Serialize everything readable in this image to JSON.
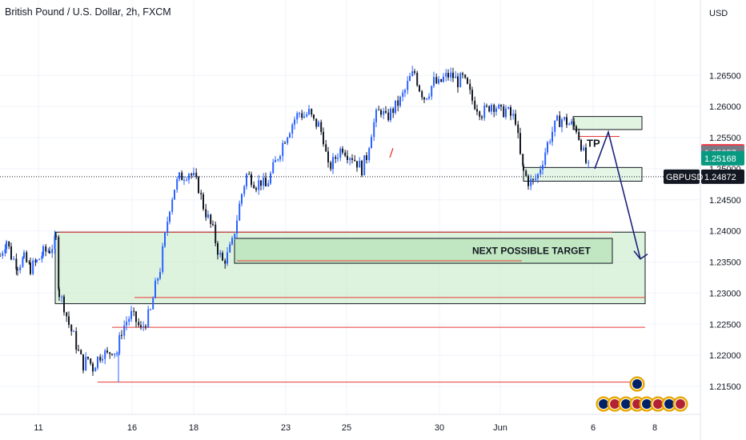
{
  "header": {
    "title": "British Pound / U.S. Dollar, 2h, FXCM",
    "currency": "USD"
  },
  "colors": {
    "up": "#2962ff",
    "down": "#131722",
    "zone_fill": "#c8ebc8",
    "zone_border": "#131722",
    "support_line": "#e53935",
    "arrow": "#1a237e",
    "grid": "#f0f3fa"
  },
  "chart_data": {
    "type": "candlestick",
    "symbol": "GBPUSD",
    "current_price": "1.24872",
    "ylim": [
      1.2105,
      1.2725
    ],
    "y_ticks": [
      1.215,
      1.22,
      1.225,
      1.23,
      1.235,
      1.24,
      1.245,
      1.25,
      1.255,
      1.26,
      1.265
    ],
    "y_tick_labels": [
      "1.21500",
      "1.22000",
      "1.22500",
      "1.23000",
      "1.23500",
      "1.24000",
      "1.24500",
      "1.25000",
      "1.25500",
      "1.26000",
      "1.26500"
    ],
    "x_labels": [
      "11",
      "16",
      "18",
      "23",
      "25",
      "30",
      "Jun",
      "6",
      "8"
    ],
    "price_badges": [
      {
        "label": "1.25281",
        "value": 1.25281,
        "color": "#f23645"
      },
      {
        "label": "1.25257",
        "value": 1.25257,
        "color": "#787b86"
      },
      {
        "label": "1.25168",
        "value": 1.25168,
        "color": "#089981"
      },
      {
        "label": "1.24872",
        "value": 1.24872,
        "color": "#131722"
      }
    ],
    "price_path": [
      [
        0,
        1.236
      ],
      [
        8,
        1.2385
      ],
      [
        14,
        1.236
      ],
      [
        22,
        1.2345
      ],
      [
        30,
        1.2355
      ],
      [
        38,
        1.234
      ],
      [
        46,
        1.235
      ],
      [
        54,
        1.2365
      ],
      [
        62,
        1.237
      ],
      [
        70,
        1.2385
      ],
      [
        74,
        1.23
      ],
      [
        80,
        1.228
      ],
      [
        86,
        1.225
      ],
      [
        92,
        1.223
      ],
      [
        98,
        1.2205
      ],
      [
        104,
        1.2185
      ],
      [
        110,
        1.2195
      ],
      [
        116,
        1.218
      ],
      [
        122,
        1.2195
      ],
      [
        128,
        1.2205
      ],
      [
        134,
        1.22
      ],
      [
        140,
        1.221
      ],
      [
        146,
        1.2205
      ],
      [
        152,
        1.224
      ],
      [
        158,
        1.2255
      ],
      [
        164,
        1.2265
      ],
      [
        170,
        1.2255
      ],
      [
        176,
        1.224
      ],
      [
        182,
        1.2255
      ],
      [
        188,
        1.227
      ],
      [
        194,
        1.231
      ],
      [
        200,
        1.234
      ],
      [
        206,
        1.239
      ],
      [
        212,
        1.244
      ],
      [
        218,
        1.247
      ],
      [
        224,
        1.2485
      ],
      [
        230,
        1.249
      ],
      [
        236,
        1.2495
      ],
      [
        242,
        1.2485
      ],
      [
        248,
        1.247
      ],
      [
        254,
        1.244
      ],
      [
        260,
        1.242
      ],
      [
        266,
        1.24
      ],
      [
        272,
        1.237
      ],
      [
        278,
        1.235
      ],
      [
        284,
        1.236
      ],
      [
        290,
        1.238
      ],
      [
        296,
        1.242
      ],
      [
        302,
        1.246
      ],
      [
        308,
        1.249
      ],
      [
        314,
        1.2485
      ],
      [
        320,
        1.2475
      ],
      [
        326,
        1.248
      ],
      [
        332,
        1.247
      ],
      [
        338,
        1.249
      ],
      [
        344,
        1.251
      ],
      [
        350,
        1.253
      ],
      [
        356,
        1.255
      ],
      [
        362,
        1.2565
      ],
      [
        368,
        1.258
      ],
      [
        374,
        1.259
      ],
      [
        380,
        1.2585
      ],
      [
        386,
        1.259
      ],
      [
        392,
        1.2575
      ],
      [
        398,
        1.257
      ],
      [
        404,
        1.255
      ],
      [
        410,
        1.25
      ],
      [
        416,
        1.251
      ],
      [
        422,
        1.2525
      ],
      [
        428,
        1.2535
      ],
      [
        434,
        1.2525
      ],
      [
        440,
        1.252
      ],
      [
        446,
        1.251
      ],
      [
        452,
        1.25
      ],
      [
        458,
        1.252
      ],
      [
        464,
        1.256
      ],
      [
        470,
        1.2585
      ],
      [
        476,
        1.2595
      ],
      [
        482,
        1.258
      ],
      [
        488,
        1.259
      ],
      [
        494,
        1.26
      ],
      [
        500,
        1.261
      ],
      [
        506,
        1.2625
      ],
      [
        512,
        1.2645
      ],
      [
        518,
        1.2655
      ],
      [
        524,
        1.263
      ],
      [
        530,
        1.2615
      ],
      [
        536,
        1.2625
      ],
      [
        542,
        1.264
      ],
      [
        548,
        1.2635
      ],
      [
        554,
        1.2645
      ],
      [
        560,
        1.265
      ],
      [
        566,
        1.2648
      ],
      [
        572,
        1.264
      ],
      [
        578,
        1.2645
      ],
      [
        584,
        1.263
      ],
      [
        590,
        1.261
      ],
      [
        596,
        1.26
      ],
      [
        602,
        1.259
      ],
      [
        608,
        1.2595
      ],
      [
        614,
        1.2605
      ],
      [
        620,
        1.26
      ],
      [
        626,
        1.259
      ],
      [
        632,
        1.2595
      ],
      [
        638,
        1.2585
      ],
      [
        644,
        1.258
      ],
      [
        650,
        1.252
      ],
      [
        654,
        1.2495
      ],
      [
        660,
        1.248
      ],
      [
        666,
        1.2478
      ],
      [
        672,
        1.249
      ],
      [
        678,
        1.2515
      ],
      [
        684,
        1.254
      ],
      [
        690,
        1.256
      ],
      [
        696,
        1.2575
      ],
      [
        702,
        1.258
      ],
      [
        708,
        1.2575
      ],
      [
        714,
        1.257
      ],
      [
        720,
        1.2565
      ],
      [
        726,
        1.254
      ],
      [
        732,
        1.251
      ],
      [
        738,
        1.249
      ]
    ],
    "zones": [
      {
        "name": "upper-target-box",
        "x0": 716,
        "x1": 802,
        "y_top": 1.2584,
        "y_bot": 1.2563
      },
      {
        "name": "current-box",
        "x0": 654,
        "x1": 802,
        "y_top": 1.2502,
        "y_bot": 1.248
      },
      {
        "name": "large-demand-zone",
        "x0": 69,
        "x1": 806,
        "y_top": 1.2398,
        "y_bot": 1.2283
      },
      {
        "name": "next-target-box",
        "x0": 293,
        "x1": 765,
        "y_top": 1.2388,
        "y_bot": 1.2348
      }
    ],
    "horizontal_lines": [
      {
        "name": "tp-line",
        "value": 1.2552,
        "x0": 724,
        "x1": 774
      },
      {
        "name": "target-midline",
        "value": 1.2352,
        "x0": 296,
        "x1": 652
      },
      {
        "name": "zone-top-line",
        "value": 1.2398,
        "x0": 74,
        "x1": 765
      },
      {
        "name": "support-1",
        "value": 1.2293,
        "x0": 168,
        "x1": 806
      },
      {
        "name": "support-2",
        "value": 1.2245,
        "x0": 140,
        "x1": 806
      },
      {
        "name": "support-3",
        "value": 1.2157,
        "x0": 122,
        "x1": 792
      }
    ],
    "projection_path": [
      [
        743,
        1.25
      ],
      [
        760,
        1.2559
      ],
      [
        800,
        1.2355
      ]
    ],
    "annotations": {
      "tp": "TP",
      "next_target": "NEXT POSSIBLE TARGET"
    }
  }
}
